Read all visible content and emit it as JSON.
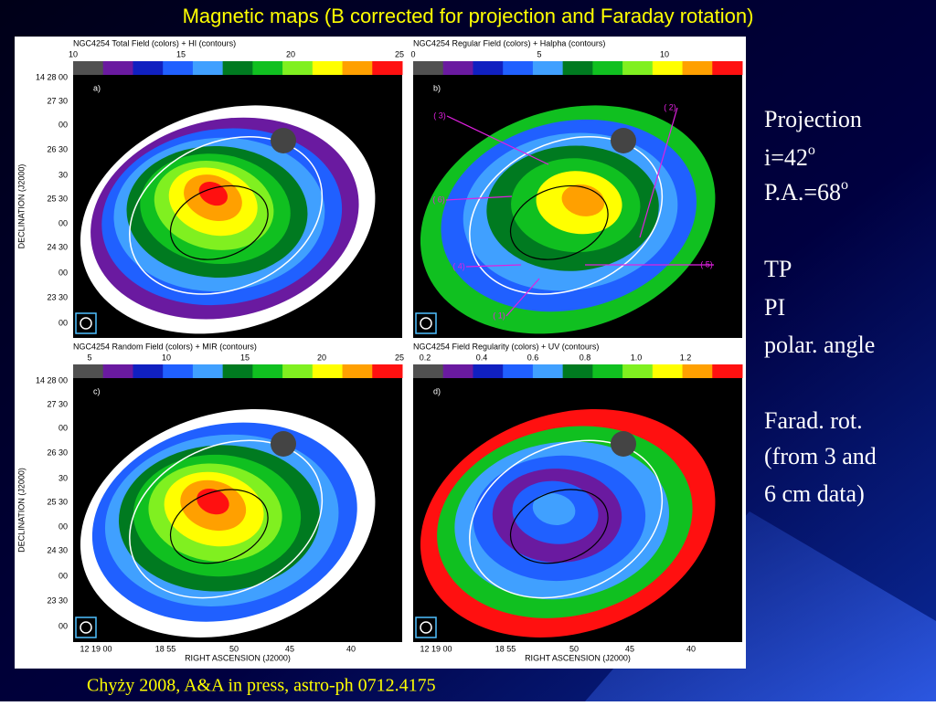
{
  "title": "Magnetic maps   (B corrected for projection and Faraday rotation)",
  "citation": "Chyży 2008, A&A in press, astro-ph 0712.4175",
  "side_text": [
    [
      {
        "text": "Projection"
      },
      {
        "text": "i=42",
        "sup": "o"
      },
      {
        "text": "P.A.=68",
        "sup": "o"
      }
    ],
    [
      {
        "text": "TP"
      },
      {
        "text": "PI"
      },
      {
        "text": "polar. angle"
      }
    ],
    [
      {
        "text": "Farad. rot."
      },
      {
        "text": "(from 3 and"
      },
      {
        "text": "6 cm data)"
      }
    ]
  ],
  "axes": {
    "dec_label": "DECLINATION (J2000)",
    "ra_label": "RIGHT ASCENSION (J2000)",
    "dec_ticks": [
      "14 28 00",
      "27 30",
      "00",
      "26 30",
      "30",
      "25 30",
      "00",
      "24 30",
      "00",
      "23 30",
      "00"
    ],
    "ra_ticks": [
      "12 19 00",
      "18 55",
      "50",
      "45",
      "40"
    ]
  },
  "panels": [
    {
      "header": "NGC4254   Total Field (colors) + HI (contours)",
      "letter": "a)",
      "colorbar": [
        "10",
        "15",
        "20",
        "25"
      ]
    },
    {
      "header": "NGC4254   Regular Field (colors) + Halpha (contours)",
      "letter": "b)",
      "colorbar": [
        "0",
        "5",
        "10"
      ],
      "annotations": [
        "( 3)",
        "( 2)",
        "( 6)",
        "( 4)",
        "( 5)",
        "( 1)"
      ]
    },
    {
      "header": "NGC4254   Random Field (colors) + MIR (contours)",
      "letter": "c)",
      "colorbar": [
        "5",
        "10",
        "15",
        "20",
        "25"
      ]
    },
    {
      "header": "NGC4254   Field Regularity (colors) + UV (contours)",
      "letter": "d)",
      "colorbar": [
        "0.2",
        "0.4",
        "0.6",
        "0.8",
        "1.0",
        "1.2"
      ]
    }
  ]
}
